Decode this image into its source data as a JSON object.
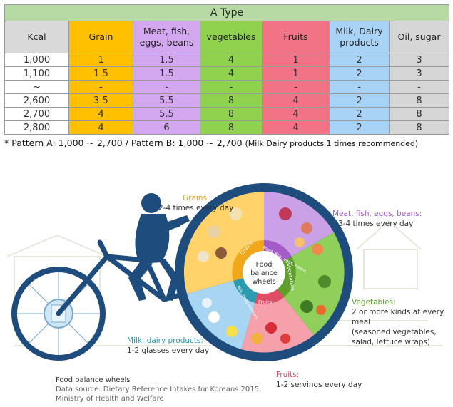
{
  "table": {
    "title": "A Type",
    "headers": [
      "Kcal",
      "Grain",
      "Meat, fish,\neggs, beans",
      "vegetables",
      "Fruits",
      "Milk, Dairy\nproducts",
      "Oil, sugar"
    ],
    "rows": [
      [
        "1,000",
        "1",
        "1.5",
        "4",
        "1",
        "2",
        "3"
      ],
      [
        "1,100",
        "1.5",
        "1.5",
        "4",
        "1",
        "2",
        "3"
      ],
      [
        "~",
        "-",
        "-",
        "-",
        "-",
        "-",
        "-"
      ],
      [
        "2,600",
        "3.5",
        "5.5",
        "8",
        "4",
        "2",
        "8"
      ],
      [
        "2,700",
        "4",
        "5.5",
        "8",
        "4",
        "2",
        "8"
      ],
      [
        "2,800",
        "4",
        "6",
        "8",
        "4",
        "2",
        "8"
      ]
    ]
  },
  "note": {
    "main": "* Pattern A: 1,000 ~ 2,700 / Pattern B: 1,000 ~ 2,700",
    "small": "(Milk·Dairy products 1 times recommended)"
  },
  "wheel": {
    "center_line1": "Food",
    "center_line2": "balance",
    "center_line3": "wheels",
    "seg_grains": "Grains",
    "seg_meat": "Meat, fish, eggs, beans",
    "seg_veg": "Vegetables",
    "seg_fruits": "Fruits",
    "seg_milk": "Milk, dairy products"
  },
  "labels": {
    "grains_head": "Grains:",
    "grains_text": "2-4 times every day",
    "meat_head": "Meat, fish, eggs, beans:",
    "meat_text": "3-4 times every day",
    "veg_head": "Vegetables:",
    "veg_text1": "2 or more kinds at every",
    "veg_text2": "meal",
    "veg_text3": "(seasoned vegetables,",
    "veg_text4": "salad, lettuce wraps)",
    "milk_head": "Milk, dairy products:",
    "milk_text": "1-2 glasses every day",
    "fruit_head": "Fruits:",
    "fruit_text": "1-2 servings every day"
  },
  "source": {
    "title": "Food balance wheels",
    "line1": "Data source: Dietary Reference Intakes for Koreans 2015,",
    "line2": "Ministry of Health and Welfare"
  },
  "colors": {
    "grain": "#ffc000",
    "meat": "#d3a8f0",
    "veg": "#8fd24d",
    "fruit": "#f37386",
    "milk": "#a9d2f7",
    "oil": "#d6d6d6",
    "header": "#b7d9a4"
  }
}
